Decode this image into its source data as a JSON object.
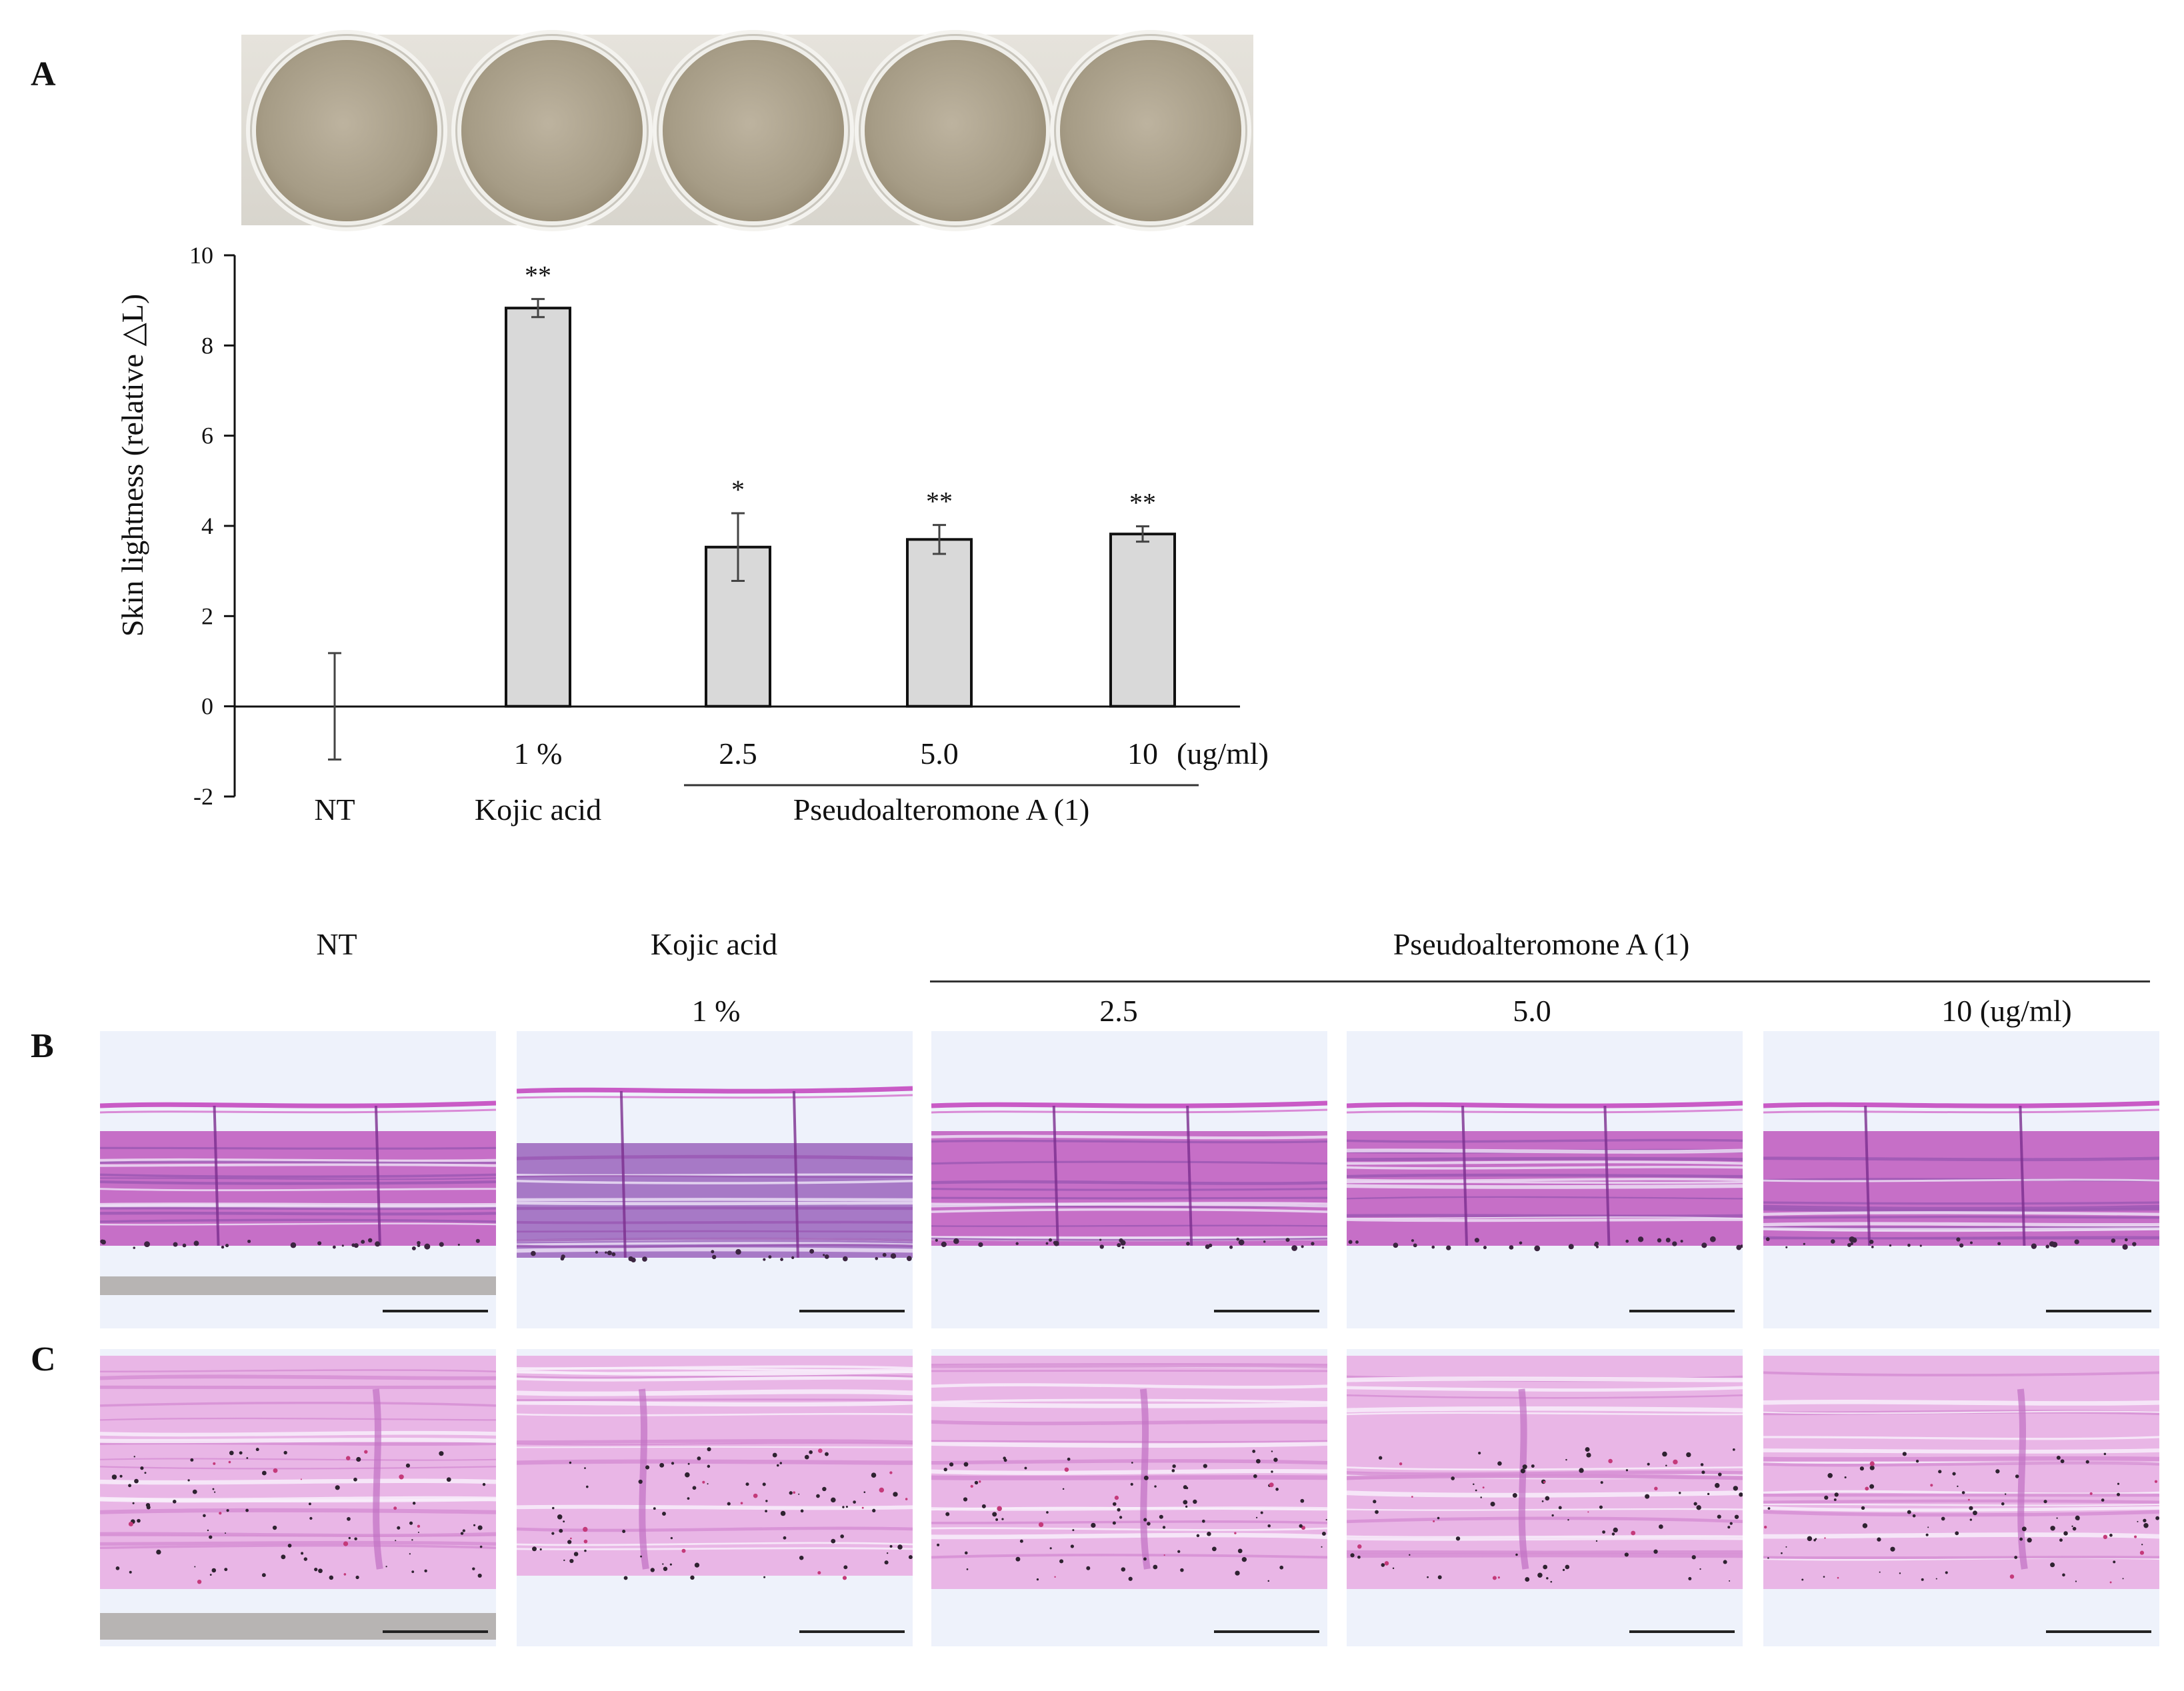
{
  "panels": {
    "a": "A",
    "b": "B",
    "c": "C"
  },
  "chart_data": {
    "type": "bar",
    "ylabel": "Skin lightness (relative △L)",
    "ylim": [
      -2,
      10
    ],
    "yticks": [
      "10",
      "8",
      "6",
      "4",
      "2",
      "0",
      "-2"
    ],
    "categories": [
      {
        "dose": "",
        "group": "NT",
        "value": 0,
        "error": 1.18,
        "sig": ""
      },
      {
        "dose": "1 %",
        "group": "Kojic acid",
        "value": 8.83,
        "error": 0.2,
        "sig": "**"
      },
      {
        "dose": "2.5",
        "group": "",
        "value": 3.53,
        "error": 0.75,
        "sig": "*"
      },
      {
        "dose": "5.0",
        "group": "",
        "value": 3.7,
        "error": 0.32,
        "sig": "**"
      },
      {
        "dose": "10",
        "group": "",
        "value": 3.82,
        "error": 0.17,
        "sig": "**"
      }
    ],
    "unit_label": "(ug/ml)",
    "group_label": "Pseudoalteromone A (1)",
    "bar_color": "#d9d9d9"
  },
  "histology": {
    "columns": [
      "NT",
      "Kojic acid",
      "Pseudoalteromone A (1)"
    ],
    "doses": [
      "1 %",
      "2.5",
      "5.0",
      "10  (ug/ml)"
    ],
    "row_b_scale": "200 μm",
    "row_c_scale": "100 μm"
  }
}
